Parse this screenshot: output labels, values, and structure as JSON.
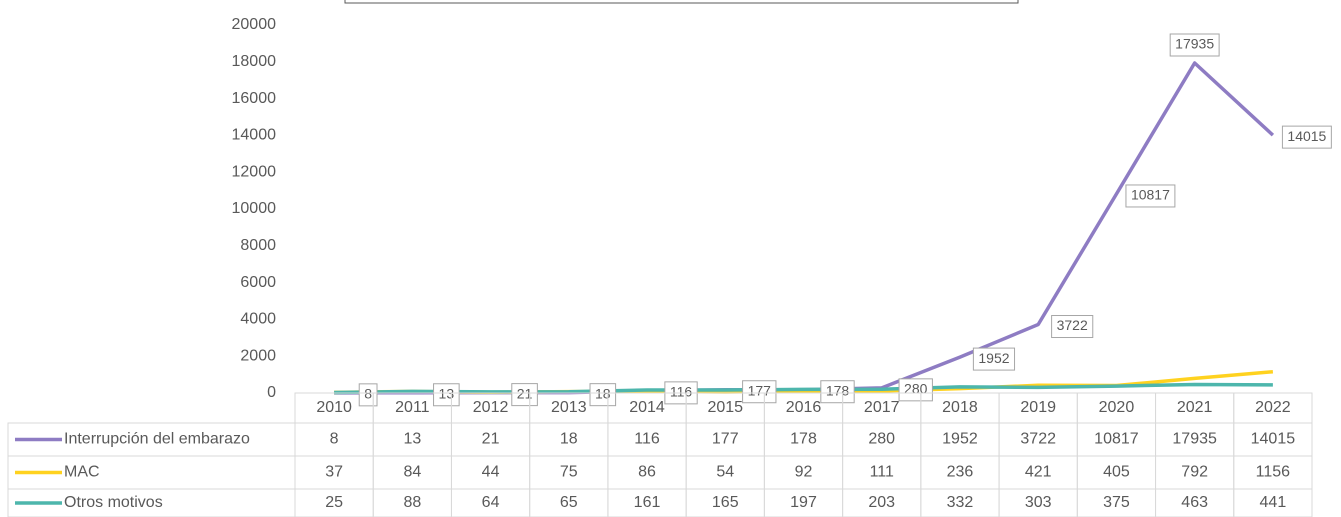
{
  "chart_data": {
    "type": "line",
    "categories": [
      "2010",
      "2011",
      "2012",
      "2013",
      "2014",
      "2015",
      "2016",
      "2017",
      "2018",
      "2019",
      "2020",
      "2021",
      "2022"
    ],
    "series": [
      {
        "name": "Interrupción del embarazo",
        "color": "#8e7cc3",
        "values": [
          8,
          13,
          21,
          18,
          116,
          177,
          178,
          280,
          1952,
          3722,
          10817,
          17935,
          14015
        ]
      },
      {
        "name": "MAC",
        "color": "#ffd21f",
        "values": [
          37,
          84,
          44,
          75,
          86,
          54,
          92,
          111,
          236,
          421,
          405,
          792,
          1156
        ]
      },
      {
        "name": "Otros motivos",
        "color": "#4db6ac",
        "values": [
          25,
          88,
          64,
          65,
          161,
          165,
          197,
          203,
          332,
          303,
          375,
          463,
          441
        ]
      }
    ],
    "ylim": [
      0,
      20000
    ],
    "yticks": [
      0,
      2000,
      4000,
      6000,
      8000,
      10000,
      12000,
      14000,
      16000,
      18000,
      20000
    ],
    "data_table": true
  }
}
